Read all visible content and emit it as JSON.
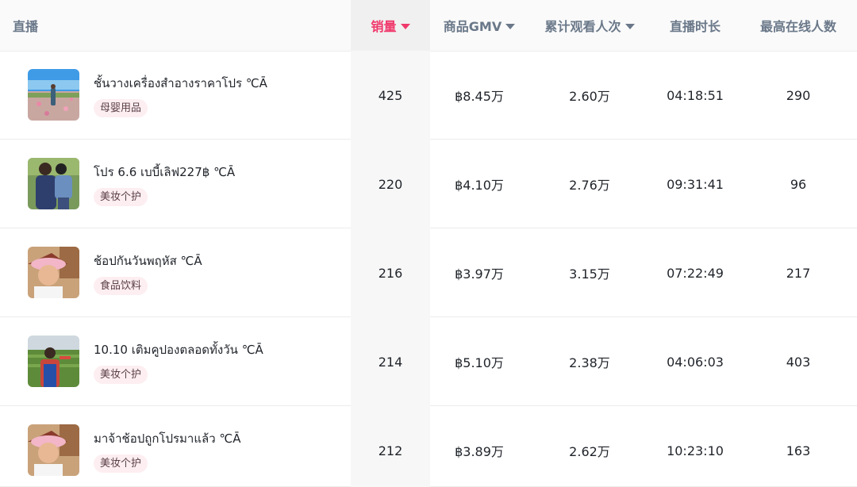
{
  "table": {
    "headers": [
      {
        "label": "直播",
        "sortable": false
      },
      {
        "label": "销量",
        "sortable": true,
        "active": true
      },
      {
        "label": "商品GMV",
        "sortable": true
      },
      {
        "label": "累计观看人次",
        "sortable": true
      },
      {
        "label": "直播时长",
        "sortable": false
      },
      {
        "label": "最高在线人数",
        "sortable": false
      }
    ],
    "rows": [
      {
        "title": "ชั้นวางเครื่องสำอางราคาโปร ℃Ā",
        "category": "母婴用品",
        "sales": "425",
        "gmv": "฿8.45万",
        "views": "2.60万",
        "duration": "04:18:51",
        "peak_online": "290",
        "thumb": "field-flowers"
      },
      {
        "title": "โปร 6.6 เบบี้เลิฟ227฿ ℃Ā",
        "category": "美妆个护",
        "sales": "220",
        "gmv": "฿4.10万",
        "views": "2.76万",
        "duration": "09:31:41",
        "peak_online": "96",
        "thumb": "mother-child"
      },
      {
        "title": "ช้อปกันวันพฤหัส ℃Ā",
        "category": "食品饮料",
        "sales": "216",
        "gmv": "฿3.97万",
        "views": "3.15万",
        "duration": "07:22:49",
        "peak_online": "217",
        "thumb": "pink-hat-woman"
      },
      {
        "title": "10.10 เติมคูปองตลอดทั้งวัน ℃Ā",
        "category": "美妆个护",
        "sales": "214",
        "gmv": "฿5.10万",
        "views": "2.38万",
        "duration": "04:06:03",
        "peak_online": "403",
        "thumb": "farmer-field"
      },
      {
        "title": "มาจ้าช้อปถูกโปรมาแล้ว ℃Ā",
        "category": "美妆个护",
        "sales": "212",
        "gmv": "฿3.89万",
        "views": "2.62万",
        "duration": "10:23:10",
        "peak_online": "163",
        "thumb": "pink-hat-woman"
      }
    ]
  },
  "colors": {
    "sort_active": "#f0386b",
    "header_text": "#6a7889",
    "tag_bg": "#fdeef1"
  }
}
